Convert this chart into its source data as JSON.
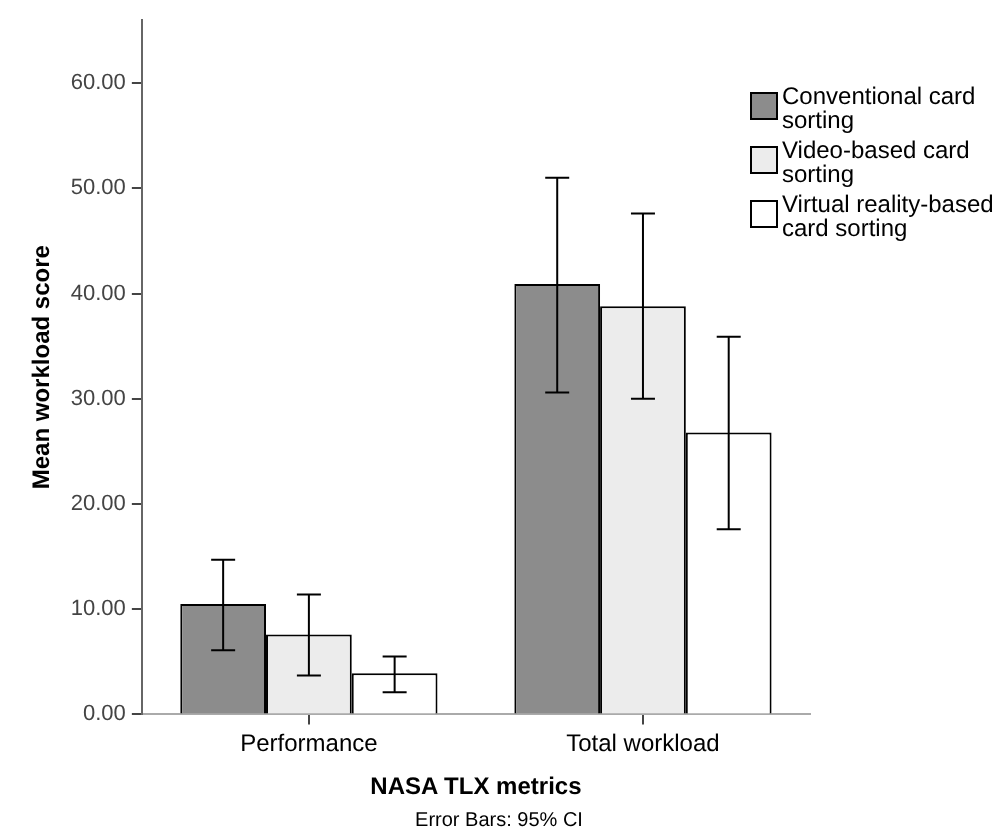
{
  "chart_data": {
    "type": "bar",
    "xlabel": "NASA TLX metrics",
    "ylabel": "Mean workload score",
    "annotations": [
      "Error Bars: 95% CI"
    ],
    "categories": [
      "Performance",
      "Total workload"
    ],
    "series": [
      {
        "name": "Conventional card sorting",
        "color": "#8c8c8c",
        "values": [
          10.5,
          40.9
        ],
        "errors": [
          [
            6.1,
            14.7
          ],
          [
            30.6,
            51.0
          ]
        ]
      },
      {
        "name": "Video-based card sorting",
        "color": "#ececec",
        "values": [
          7.6,
          38.8
        ],
        "errors": [
          [
            3.7,
            11.4
          ],
          [
            30.0,
            47.6
          ]
        ]
      },
      {
        "name": "Virtual reality-based card sorting",
        "color": "#ffffff",
        "values": [
          3.9,
          26.8
        ],
        "errors": [
          [
            2.1,
            5.5
          ],
          [
            17.6,
            35.9
          ]
        ]
      }
    ],
    "ylim": [
      0,
      66
    ],
    "yticks": [
      {
        "value": 0,
        "label": "0.00"
      },
      {
        "value": 10,
        "label": "10.00"
      },
      {
        "value": 20,
        "label": "20.00"
      },
      {
        "value": 30,
        "label": "30.00"
      },
      {
        "value": 40,
        "label": "40.00"
      },
      {
        "value": 50,
        "label": "50.00"
      },
      {
        "value": 60,
        "label": "60.00"
      }
    ],
    "grid": false,
    "legend": "top right"
  }
}
